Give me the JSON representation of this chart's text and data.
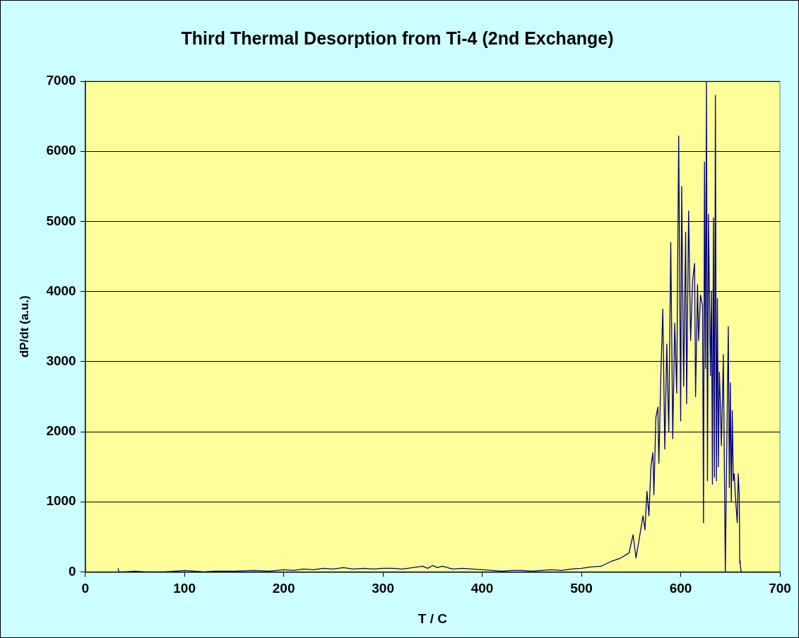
{
  "chart_data": {
    "type": "line",
    "title": "Third Thermal Desorption from Ti-4 (2nd Exchange)",
    "xlabel": "T / C",
    "ylabel": "dP/dt (a.u.)",
    "x": [
      33,
      34,
      40,
      50,
      60,
      70,
      80,
      90,
      100,
      110,
      120,
      130,
      150,
      170,
      185,
      200,
      210,
      220,
      230,
      240,
      250,
      260,
      270,
      280,
      290,
      300,
      310,
      320,
      330,
      340,
      345,
      350,
      355,
      360,
      370,
      380,
      390,
      400,
      410,
      420,
      430,
      440,
      450,
      460,
      470,
      480,
      490,
      500,
      510,
      520,
      530,
      540,
      548,
      552,
      555,
      558,
      562,
      564,
      566,
      568,
      570,
      572,
      573,
      575,
      577,
      578,
      580,
      582,
      584,
      586,
      588,
      590,
      592,
      594,
      596,
      598,
      600,
      601,
      603,
      605,
      606,
      608,
      610,
      612,
      614,
      615,
      617,
      618,
      620,
      622,
      623,
      624,
      625,
      626,
      627,
      628,
      630,
      631,
      632,
      633,
      634,
      635,
      636,
      637,
      638,
      639,
      640,
      641,
      642,
      643,
      644,
      645,
      646,
      648,
      649,
      650,
      651,
      652,
      653,
      654,
      655,
      657,
      658,
      659,
      659.5,
      660,
      661
    ],
    "series": [
      {
        "color": "#000080",
        "values": [
          50,
          0,
          0,
          10,
          0,
          0,
          0,
          10,
          20,
          10,
          0,
          10,
          10,
          20,
          10,
          30,
          20,
          40,
          30,
          50,
          40,
          60,
          40,
          50,
          40,
          50,
          50,
          40,
          60,
          80,
          50,
          90,
          60,
          80,
          40,
          50,
          40,
          30,
          20,
          10,
          20,
          20,
          10,
          20,
          30,
          20,
          40,
          50,
          70,
          80,
          150,
          200,
          270,
          530,
          200,
          450,
          800,
          600,
          1150,
          800,
          1500,
          1700,
          1100,
          2200,
          2350,
          1550,
          2800,
          3750,
          1750,
          3250,
          2000,
          4700,
          1900,
          3550,
          2550,
          6220,
          2150,
          5500,
          2650,
          4850,
          2400,
          5150,
          3300,
          4150,
          4400,
          2500,
          4100,
          3300,
          3950,
          3800,
          700,
          5850,
          2900,
          7000,
          1300,
          5100,
          2800,
          4000,
          1250,
          5050,
          1350,
          6800,
          1300,
          3900,
          1500,
          2850,
          2400,
          1800,
          2400,
          3100,
          1500,
          0,
          1300,
          3500,
          1200,
          2700,
          1000,
          2300,
          1300,
          1400,
          1100,
          700,
          1400,
          1100,
          150,
          100,
          0
        ]
      }
    ],
    "xlim": [
      0,
      700
    ],
    "xticks": [
      0,
      100,
      200,
      300,
      400,
      500,
      600,
      700
    ],
    "ylim": [
      0,
      7000
    ],
    "yticks": [
      0,
      1000,
      2000,
      3000,
      4000,
      5000,
      6000,
      7000
    ],
    "grid": "y",
    "legend": false,
    "marker": "none",
    "line_style": "solid"
  }
}
